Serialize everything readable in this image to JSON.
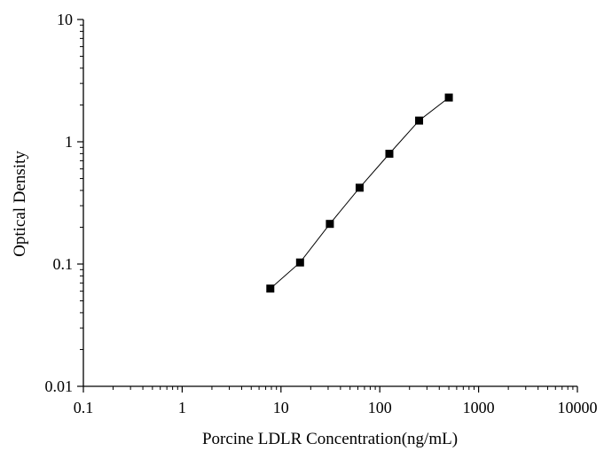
{
  "chart_data": {
    "type": "scatter",
    "title": "",
    "xlabel": "Porcine LDLR Concentration(ng/mL)",
    "ylabel": "Optical Density",
    "xscale": "log",
    "yscale": "log",
    "xlim": [
      0.1,
      10000
    ],
    "ylim": [
      0.01,
      10
    ],
    "x_ticks": [
      "0.1",
      "1",
      "10",
      "100",
      "1000",
      "10000"
    ],
    "y_ticks": [
      "0.01",
      "0.1",
      "1",
      "10"
    ],
    "grid": false,
    "legend": "none",
    "series": [
      {
        "x": [
          7.8,
          15.6,
          31.25,
          62.5,
          125,
          250,
          500
        ],
        "y": [
          0.063,
          0.103,
          0.213,
          0.421,
          0.798,
          1.49,
          2.3
        ],
        "marker": "square",
        "connect_line": true
      }
    ],
    "marker_color": "#000000",
    "line_color": "#000000"
  }
}
